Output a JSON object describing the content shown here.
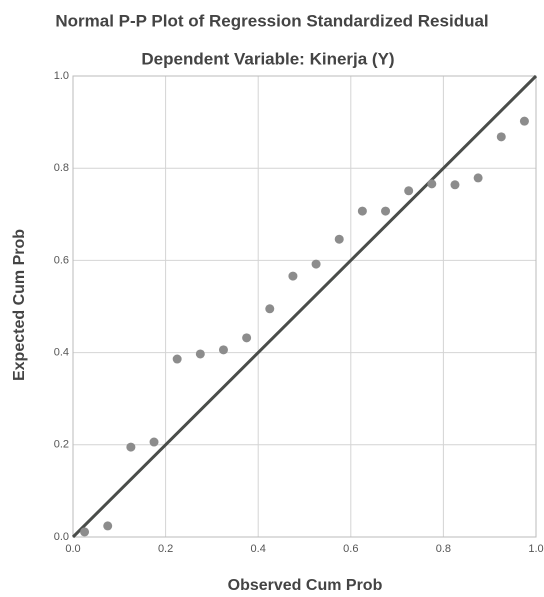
{
  "chart_data": {
    "type": "scatter",
    "title": "Normal P-P Plot of Regression Standardized Residual",
    "subtitle": "Dependent Variable: Kinerja (Y)",
    "x_label": "Observed Cum Prob",
    "y_label": "Expected Cum Prob",
    "x": [
      0.025,
      0.075,
      0.125,
      0.175,
      0.225,
      0.275,
      0.325,
      0.375,
      0.425,
      0.475,
      0.525,
      0.575,
      0.625,
      0.675,
      0.725,
      0.775,
      0.825,
      0.875,
      0.925,
      0.975
    ],
    "values": [
      0.011,
      0.024,
      0.195,
      0.206,
      0.386,
      0.397,
      0.406,
      0.432,
      0.495,
      0.566,
      0.592,
      0.646,
      0.707,
      0.707,
      0.751,
      0.766,
      0.764,
      0.779,
      0.868,
      0.902
    ],
    "color": "#8c8c8c",
    "line_color": "#4a4d4a",
    "xlim": [
      0,
      1
    ],
    "ylim": [
      0,
      1
    ],
    "xticks": [
      {
        "value": 0,
        "label": "0.0"
      },
      {
        "value": 0.2,
        "label": "0.2"
      },
      {
        "value": 0.4,
        "label": "0.4"
      },
      {
        "value": 0.6,
        "label": "0.6"
      },
      {
        "value": 0.8,
        "label": "0.8"
      },
      {
        "value": 1,
        "label": "1.0"
      }
    ],
    "yticks": [
      {
        "value": 0,
        "label": "0.0"
      },
      {
        "value": 0.2,
        "label": "0.2"
      },
      {
        "value": 0.4,
        "label": "0.4"
      },
      {
        "value": 0.6,
        "label": "0.6"
      },
      {
        "value": 0.8,
        "label": "0.8"
      },
      {
        "value": 1,
        "label": "1.0"
      }
    ],
    "grid": true
  }
}
